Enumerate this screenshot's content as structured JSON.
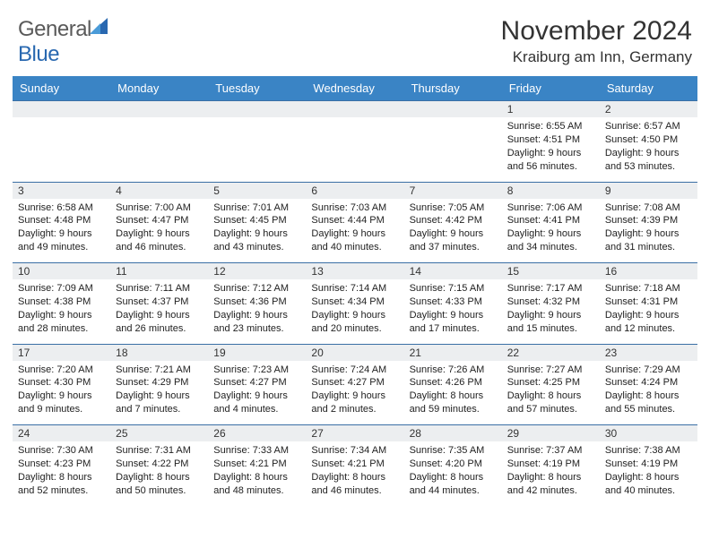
{
  "brand": {
    "part1": "General",
    "part2": "Blue"
  },
  "title": "November 2024",
  "location": "Kraiburg am Inn, Germany",
  "colors": {
    "header_bg": "#3a84c5",
    "header_text": "#ffffff",
    "daynum_bg": "#eceef0",
    "row_border": "#3a6fa5",
    "brand_gray": "#5a5a5a",
    "brand_blue": "#2968b0",
    "text": "#333333"
  },
  "day_headers": [
    "Sunday",
    "Monday",
    "Tuesday",
    "Wednesday",
    "Thursday",
    "Friday",
    "Saturday"
  ],
  "weeks": [
    [
      null,
      null,
      null,
      null,
      null,
      {
        "n": "1",
        "sr": "6:55 AM",
        "ss": "4:51 PM",
        "dl": "9 hours and 56 minutes."
      },
      {
        "n": "2",
        "sr": "6:57 AM",
        "ss": "4:50 PM",
        "dl": "9 hours and 53 minutes."
      }
    ],
    [
      {
        "n": "3",
        "sr": "6:58 AM",
        "ss": "4:48 PM",
        "dl": "9 hours and 49 minutes."
      },
      {
        "n": "4",
        "sr": "7:00 AM",
        "ss": "4:47 PM",
        "dl": "9 hours and 46 minutes."
      },
      {
        "n": "5",
        "sr": "7:01 AM",
        "ss": "4:45 PM",
        "dl": "9 hours and 43 minutes."
      },
      {
        "n": "6",
        "sr": "7:03 AM",
        "ss": "4:44 PM",
        "dl": "9 hours and 40 minutes."
      },
      {
        "n": "7",
        "sr": "7:05 AM",
        "ss": "4:42 PM",
        "dl": "9 hours and 37 minutes."
      },
      {
        "n": "8",
        "sr": "7:06 AM",
        "ss": "4:41 PM",
        "dl": "9 hours and 34 minutes."
      },
      {
        "n": "9",
        "sr": "7:08 AM",
        "ss": "4:39 PM",
        "dl": "9 hours and 31 minutes."
      }
    ],
    [
      {
        "n": "10",
        "sr": "7:09 AM",
        "ss": "4:38 PM",
        "dl": "9 hours and 28 minutes."
      },
      {
        "n": "11",
        "sr": "7:11 AM",
        "ss": "4:37 PM",
        "dl": "9 hours and 26 minutes."
      },
      {
        "n": "12",
        "sr": "7:12 AM",
        "ss": "4:36 PM",
        "dl": "9 hours and 23 minutes."
      },
      {
        "n": "13",
        "sr": "7:14 AM",
        "ss": "4:34 PM",
        "dl": "9 hours and 20 minutes."
      },
      {
        "n": "14",
        "sr": "7:15 AM",
        "ss": "4:33 PM",
        "dl": "9 hours and 17 minutes."
      },
      {
        "n": "15",
        "sr": "7:17 AM",
        "ss": "4:32 PM",
        "dl": "9 hours and 15 minutes."
      },
      {
        "n": "16",
        "sr": "7:18 AM",
        "ss": "4:31 PM",
        "dl": "9 hours and 12 minutes."
      }
    ],
    [
      {
        "n": "17",
        "sr": "7:20 AM",
        "ss": "4:30 PM",
        "dl": "9 hours and 9 minutes."
      },
      {
        "n": "18",
        "sr": "7:21 AM",
        "ss": "4:29 PM",
        "dl": "9 hours and 7 minutes."
      },
      {
        "n": "19",
        "sr": "7:23 AM",
        "ss": "4:27 PM",
        "dl": "9 hours and 4 minutes."
      },
      {
        "n": "20",
        "sr": "7:24 AM",
        "ss": "4:27 PM",
        "dl": "9 hours and 2 minutes."
      },
      {
        "n": "21",
        "sr": "7:26 AM",
        "ss": "4:26 PM",
        "dl": "8 hours and 59 minutes."
      },
      {
        "n": "22",
        "sr": "7:27 AM",
        "ss": "4:25 PM",
        "dl": "8 hours and 57 minutes."
      },
      {
        "n": "23",
        "sr": "7:29 AM",
        "ss": "4:24 PM",
        "dl": "8 hours and 55 minutes."
      }
    ],
    [
      {
        "n": "24",
        "sr": "7:30 AM",
        "ss": "4:23 PM",
        "dl": "8 hours and 52 minutes."
      },
      {
        "n": "25",
        "sr": "7:31 AM",
        "ss": "4:22 PM",
        "dl": "8 hours and 50 minutes."
      },
      {
        "n": "26",
        "sr": "7:33 AM",
        "ss": "4:21 PM",
        "dl": "8 hours and 48 minutes."
      },
      {
        "n": "27",
        "sr": "7:34 AM",
        "ss": "4:21 PM",
        "dl": "8 hours and 46 minutes."
      },
      {
        "n": "28",
        "sr": "7:35 AM",
        "ss": "4:20 PM",
        "dl": "8 hours and 44 minutes."
      },
      {
        "n": "29",
        "sr": "7:37 AM",
        "ss": "4:19 PM",
        "dl": "8 hours and 42 minutes."
      },
      {
        "n": "30",
        "sr": "7:38 AM",
        "ss": "4:19 PM",
        "dl": "8 hours and 40 minutes."
      }
    ]
  ],
  "labels": {
    "sunrise": "Sunrise:",
    "sunset": "Sunset:",
    "daylight": "Daylight:"
  }
}
